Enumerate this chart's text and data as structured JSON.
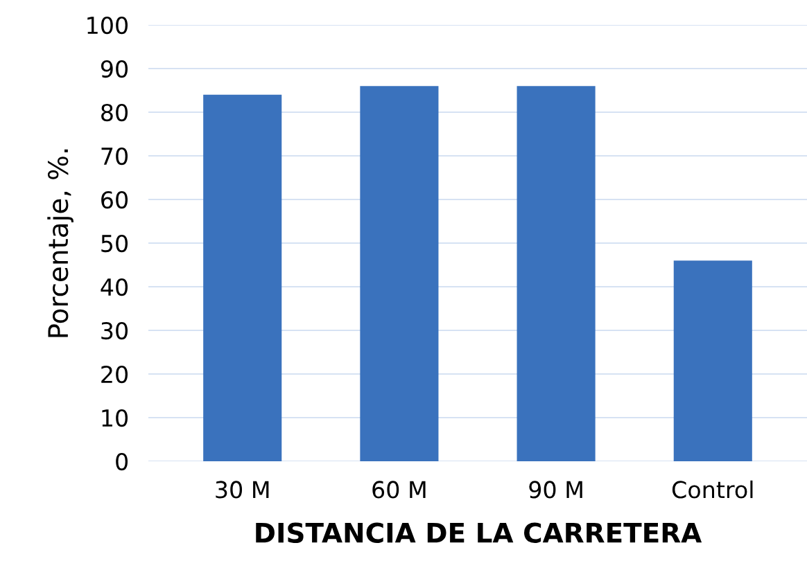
{
  "chart_data": {
    "type": "bar",
    "xlabel": "DISTANCIA DE LA CARRETERA",
    "ylabel": "Porcentaje, %.",
    "categories": [
      "30 M",
      "60 M",
      "90 M",
      "Control"
    ],
    "values": [
      84,
      86,
      86,
      46
    ],
    "color": "#3a72bd",
    "ylim": [
      0,
      100
    ],
    "yticks": [
      0,
      10,
      20,
      30,
      40,
      50,
      60,
      70,
      80,
      90,
      100
    ],
    "grid": "y"
  }
}
